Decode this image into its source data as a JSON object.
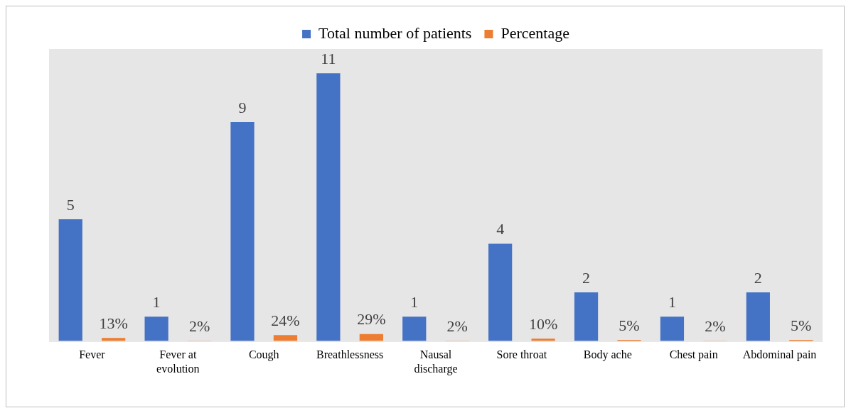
{
  "chart_data": {
    "type": "bar",
    "categories": [
      "Fever",
      "Fever at evolution",
      "Cough",
      "Breathlessness",
      "Nausal discharge",
      "Sore throat",
      "Body ache",
      "Chest pain",
      "Abdominal pain"
    ],
    "series": [
      {
        "name": "Total number of patients",
        "color": "#4472c4",
        "values": [
          5,
          1,
          9,
          11,
          1,
          4,
          2,
          1,
          2
        ],
        "value_labels": [
          "5",
          "1",
          "9",
          "11",
          "1",
          "4",
          "2",
          "1",
          "2"
        ]
      },
      {
        "name": "Percentage",
        "color": "#ed7d31",
        "axis": "y2",
        "values": [
          13,
          2,
          24,
          29,
          2,
          10,
          5,
          2,
          5
        ],
        "value_labels": [
          "13%",
          "2%",
          "24%",
          "29%",
          "2%",
          "10%",
          "5%",
          "2%",
          "5%"
        ]
      }
    ],
    "ylim": [
      0,
      12
    ],
    "y2lim": [
      0,
      1200
    ],
    "legend": "top",
    "grid": false
  }
}
